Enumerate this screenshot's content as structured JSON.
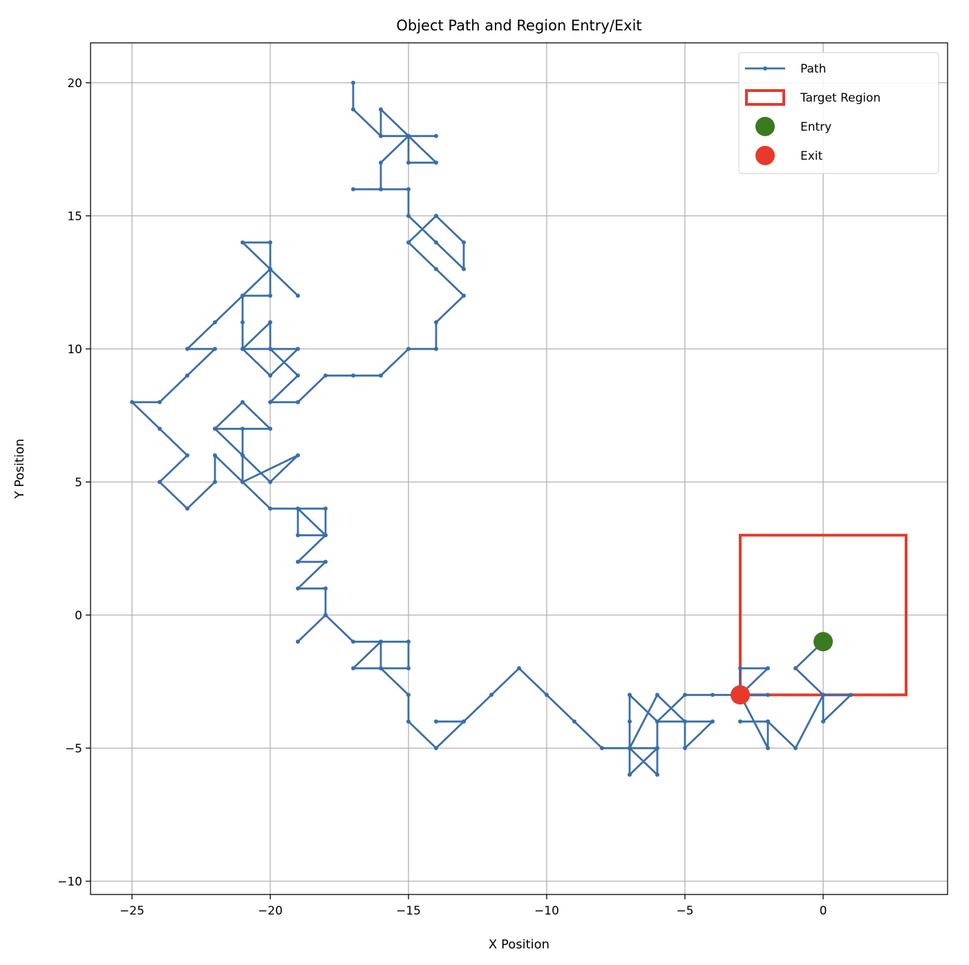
{
  "chart_data": {
    "type": "line",
    "title": "Object Path and Region Entry/Exit",
    "xlabel": "X Position",
    "ylabel": "Y Position",
    "xlim": [
      -26.5,
      4.5
    ],
    "ylim": [
      -10.5,
      21.5
    ],
    "x_ticks": [
      -25,
      -20,
      -15,
      -10,
      -5,
      0
    ],
    "y_ticks": [
      -10,
      -5,
      0,
      5,
      10,
      15,
      20
    ],
    "x_tick_labels": [
      "−25",
      "−20",
      "−15",
      "−10",
      "−5",
      "0"
    ],
    "y_tick_labels": [
      "−10",
      "−5",
      "0",
      "5",
      "10",
      "15",
      "20"
    ],
    "grid": true,
    "legend_position": "top-right",
    "colors": {
      "path": "#3a6ea8",
      "region": "#e8392a",
      "entry": "#3a7a20",
      "exit": "#e8392a",
      "grid": "#b0b0b0"
    },
    "legend": [
      {
        "key": "path",
        "label": "Path"
      },
      {
        "key": "region",
        "label": "Target Region"
      },
      {
        "key": "entry",
        "label": "Entry"
      },
      {
        "key": "exit",
        "label": "Exit"
      }
    ],
    "series": [
      {
        "name": "Path",
        "points": [
          [
            0,
            -1
          ],
          [
            -1,
            -2
          ],
          [
            0,
            -3
          ],
          [
            1,
            -3
          ],
          [
            0,
            -4
          ],
          [
            0,
            -3
          ],
          [
            -1,
            -5
          ],
          [
            -2,
            -4
          ],
          [
            -3,
            -4
          ],
          [
            -2,
            -4
          ],
          [
            -2,
            -5
          ],
          [
            -3,
            -3
          ],
          [
            -3,
            -2
          ],
          [
            -2,
            -2
          ],
          [
            -3,
            -3
          ],
          [
            -2,
            -3
          ],
          [
            -3,
            -3
          ],
          [
            -4,
            -3
          ],
          [
            -5,
            -3
          ],
          [
            -6,
            -4
          ],
          [
            -7,
            -3
          ],
          [
            -7,
            -4
          ],
          [
            -7,
            -5
          ],
          [
            -6,
            -5
          ],
          [
            -6,
            -4
          ],
          [
            -5,
            -4
          ],
          [
            -4,
            -4
          ],
          [
            -5,
            -5
          ],
          [
            -5,
            -4
          ],
          [
            -6,
            -3
          ],
          [
            -7,
            -5
          ],
          [
            -6,
            -6
          ],
          [
            -6,
            -5
          ],
          [
            -7,
            -6
          ],
          [
            -7,
            -5
          ],
          [
            -8,
            -5
          ],
          [
            -9,
            -4
          ],
          [
            -10,
            -3
          ],
          [
            -11,
            -2
          ],
          [
            -12,
            -3
          ],
          [
            -13,
            -4
          ],
          [
            -14,
            -4
          ],
          [
            -13,
            -4
          ],
          [
            -14,
            -5
          ],
          [
            -15,
            -4
          ],
          [
            -15,
            -3
          ],
          [
            -16,
            -2
          ],
          [
            -15,
            -2
          ],
          [
            -15,
            -1
          ],
          [
            -16,
            -1
          ],
          [
            -16,
            -2
          ],
          [
            -17,
            -2
          ],
          [
            -16,
            -1
          ],
          [
            -17,
            -1
          ],
          [
            -18,
            0
          ],
          [
            -19,
            -1
          ],
          [
            -18,
            0
          ],
          [
            -18,
            1
          ],
          [
            -19,
            1
          ],
          [
            -18,
            2
          ],
          [
            -19,
            2
          ],
          [
            -18,
            3
          ],
          [
            -18,
            4
          ],
          [
            -19,
            4
          ],
          [
            -19,
            3
          ],
          [
            -18,
            3
          ],
          [
            -19,
            4
          ],
          [
            -20,
            4
          ],
          [
            -21,
            5
          ],
          [
            -19,
            6
          ],
          [
            -20,
            5
          ],
          [
            -21,
            6
          ],
          [
            -21,
            7
          ],
          [
            -22,
            7
          ],
          [
            -21,
            8
          ],
          [
            -20,
            7
          ],
          [
            -22,
            7
          ],
          [
            -21,
            6
          ],
          [
            -21,
            5
          ],
          [
            -22,
            6
          ],
          [
            -22,
            5
          ],
          [
            -23,
            4
          ],
          [
            -24,
            5
          ],
          [
            -23,
            6
          ],
          [
            -24,
            7
          ],
          [
            -25,
            8
          ],
          [
            -24,
            8
          ],
          [
            -23,
            9
          ],
          [
            -22,
            10
          ],
          [
            -23,
            10
          ],
          [
            -22,
            11
          ],
          [
            -21,
            12
          ],
          [
            -20,
            12
          ],
          [
            -20,
            13
          ],
          [
            -21,
            14
          ],
          [
            -20,
            14
          ],
          [
            -20,
            13
          ],
          [
            -19,
            12
          ],
          [
            -20,
            13
          ],
          [
            -21,
            12
          ],
          [
            -21,
            11
          ],
          [
            -21,
            10
          ],
          [
            -20,
            11
          ],
          [
            -20,
            10
          ],
          [
            -21,
            10
          ],
          [
            -20,
            9
          ],
          [
            -19,
            10
          ],
          [
            -20,
            10
          ],
          [
            -19,
            9
          ],
          [
            -20,
            8
          ],
          [
            -19,
            8
          ],
          [
            -18,
            9
          ],
          [
            -17,
            9
          ],
          [
            -16,
            9
          ],
          [
            -15,
            10
          ],
          [
            -14,
            10
          ],
          [
            -14,
            11
          ],
          [
            -13,
            12
          ],
          [
            -14,
            13
          ],
          [
            -15,
            14
          ],
          [
            -14,
            15
          ],
          [
            -13,
            14
          ],
          [
            -13,
            13
          ],
          [
            -14,
            14
          ],
          [
            -15,
            15
          ],
          [
            -15,
            16
          ],
          [
            -16,
            16
          ],
          [
            -17,
            16
          ],
          [
            -16,
            16
          ],
          [
            -16,
            17
          ],
          [
            -15,
            18
          ],
          [
            -14,
            18
          ],
          [
            -15,
            18
          ],
          [
            -16,
            18
          ],
          [
            -16,
            19
          ],
          [
            -15,
            18
          ],
          [
            -15,
            17
          ],
          [
            -14,
            17
          ],
          [
            -15,
            18
          ],
          [
            -16,
            18
          ],
          [
            -17,
            19
          ],
          [
            -17,
            20
          ]
        ]
      }
    ],
    "target_region": {
      "x": [
        -3,
        3
      ],
      "y": [
        -3,
        3
      ]
    },
    "entry": {
      "x": 0,
      "y": -1
    },
    "exit": {
      "x": -3,
      "y": -3
    }
  }
}
